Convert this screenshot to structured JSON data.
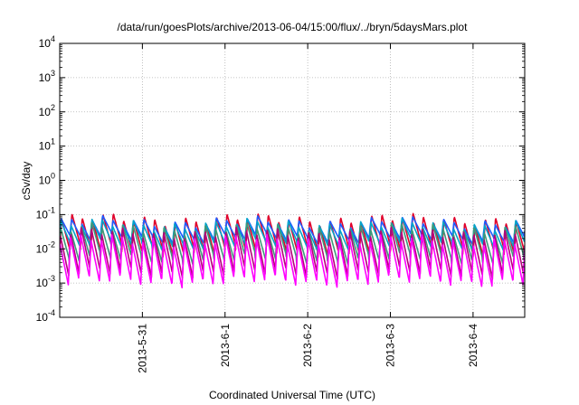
{
  "chart_data": {
    "type": "line",
    "title": "/data/run/goesPlots/archive/2013-06-04/15:00/flux/../bryn/5daysMars.plot",
    "xlabel": "Coordinated Universal Time (UTC)",
    "ylabel": "cSv/day",
    "yscale": "log",
    "ylim": [
      0.0001,
      10000
    ],
    "xlim": [
      "2013-05-30 00:00",
      "2013-06-04 15:00"
    ],
    "grid": true,
    "x_ticks": [
      "2013-5-31",
      "2013-6-1",
      "2013-6-2",
      "2013-6-3",
      "2013-6-4"
    ],
    "y_ticks": [
      {
        "base": "10",
        "exp": "-4"
      },
      {
        "base": "10",
        "exp": "-3"
      },
      {
        "base": "10",
        "exp": "-2"
      },
      {
        "base": "10",
        "exp": "-1"
      },
      {
        "base": "10",
        "exp": "0"
      },
      {
        "base": "10",
        "exp": "1"
      },
      {
        "base": "10",
        "exp": "2"
      },
      {
        "base": "10",
        "exp": "3"
      },
      {
        "base": "10",
        "exp": "4"
      }
    ],
    "oscillation_period_hours": 3,
    "series": [
      {
        "color": "#e0002a",
        "peak": 0.075,
        "trough": 0.009
      },
      {
        "color": "#1e5cff",
        "peak": 0.06,
        "trough": 0.02
      },
      {
        "color": "#00a5c8",
        "peak": 0.05,
        "trough": 0.013
      },
      {
        "color": "#3d9a7a",
        "peak": 0.04,
        "trough": 0.005
      },
      {
        "color": "#b4007a",
        "peak": 0.03,
        "trough": 0.002
      },
      {
        "color": "#ff00ff",
        "peak": 0.018,
        "trough": 0.0011
      }
    ]
  }
}
